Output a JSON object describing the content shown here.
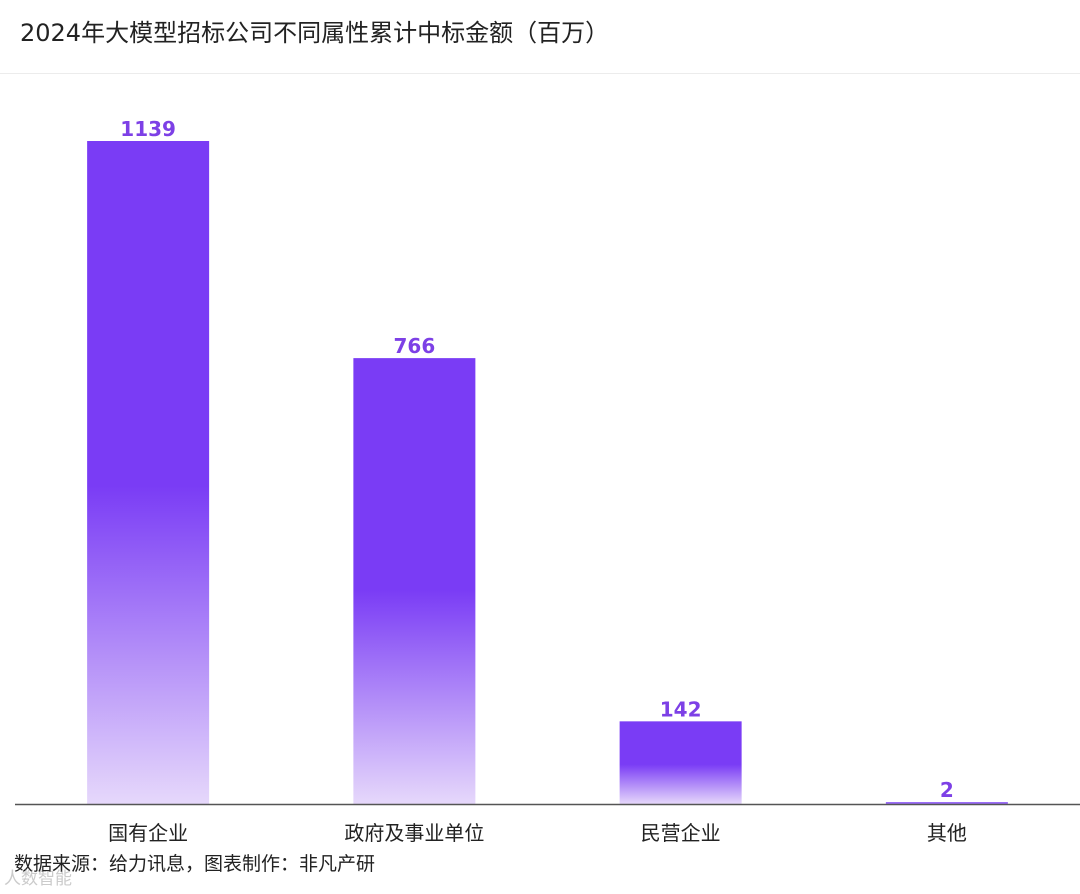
{
  "chart_data": {
    "type": "bar",
    "title": "2024年大模型招标公司不同属性累计中标金额（百万）",
    "categories": [
      "国有企业",
      "政府及事业单位",
      "民营企业",
      "其他"
    ],
    "values": [
      1139,
      766,
      142,
      2
    ],
    "ylim": [
      0,
      1139
    ],
    "grid": false,
    "legend": "none",
    "bar_color": "#7a3cf5",
    "bar_fade_color": "#e6d8fb",
    "label_color": "#7d40e6",
    "axis_color": "#555555"
  },
  "footer": {
    "source": "数据来源：给力讯息，图表制作：非凡产研",
    "watermark": "人数智能"
  }
}
